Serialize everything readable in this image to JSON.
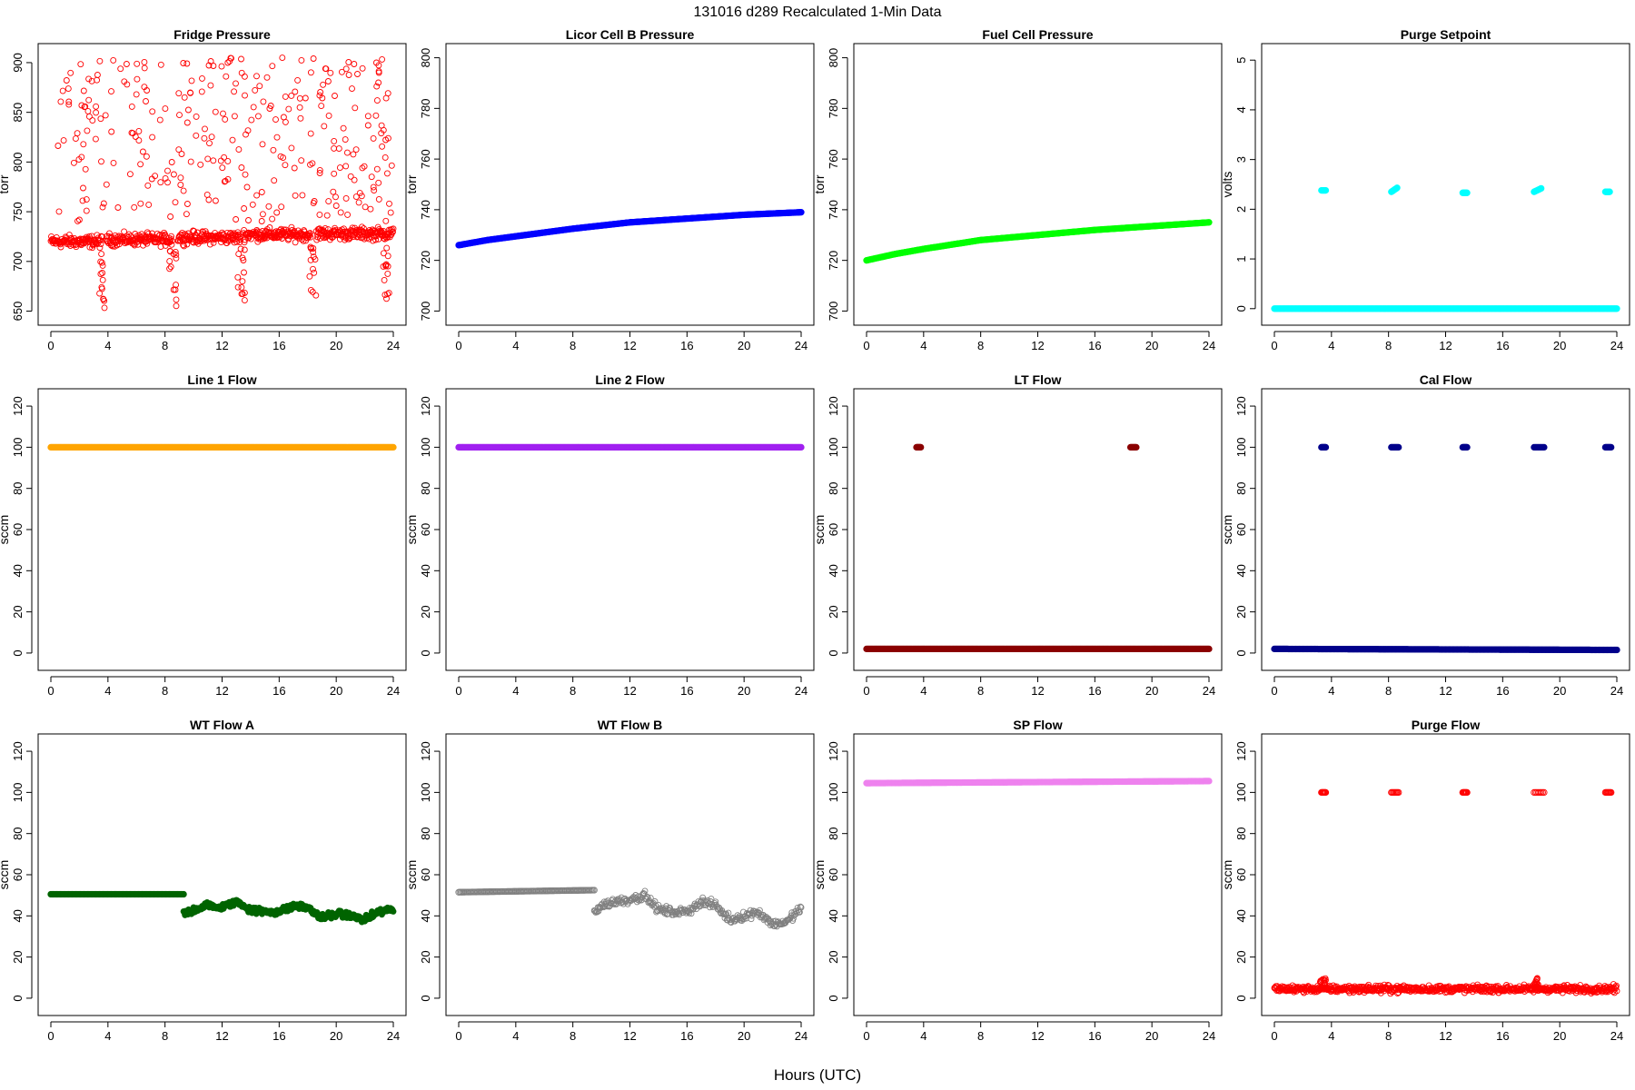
{
  "figure": {
    "title": "131016   d289   Recalculated 1-Min Data",
    "xlabel": "Hours (UTC)"
  },
  "chart_data": [
    {
      "title": "Fridge Pressure",
      "type": "scatter",
      "ylabel": "torr",
      "color": "#ff0000",
      "marker": "open-circle",
      "xlim": [
        0,
        24
      ],
      "ylim": [
        645,
        910
      ],
      "xticks": [
        0,
        4,
        8,
        12,
        16,
        20,
        24
      ],
      "yticks": [
        650,
        700,
        750,
        800,
        850,
        900
      ],
      "series": [
        {
          "kind": "band",
          "x": [
            0,
            3.6
          ],
          "y": [
            720,
            720
          ],
          "spread": 9
        },
        {
          "kind": "band",
          "x": [
            3.9,
            8.5
          ],
          "y": [
            722,
            722
          ],
          "spread": 9
        },
        {
          "kind": "band",
          "x": [
            8.9,
            13.3
          ],
          "y": [
            724,
            724
          ],
          "spread": 9
        },
        {
          "kind": "band",
          "x": [
            13.5,
            18.2
          ],
          "y": [
            727,
            727
          ],
          "spread": 9
        },
        {
          "kind": "band",
          "x": [
            18.6,
            24
          ],
          "y": [
            728,
            728
          ],
          "spread": 9
        },
        {
          "kind": "scatter",
          "count": 300,
          "x": [
            0.5,
            24
          ],
          "y": [
            740,
            905
          ]
        },
        {
          "kind": "dip",
          "x": [
            3.4,
            3.9
          ],
          "y": [
            650,
            715
          ]
        },
        {
          "kind": "dip",
          "x": [
            8.3,
            8.8
          ],
          "y": [
            655,
            715
          ]
        },
        {
          "kind": "dip",
          "x": [
            13.1,
            13.6
          ],
          "y": [
            660,
            715
          ]
        },
        {
          "kind": "dip",
          "x": [
            18.1,
            18.6
          ],
          "y": [
            660,
            715
          ]
        },
        {
          "kind": "dip",
          "x": [
            23.2,
            23.7
          ],
          "y": [
            660,
            715
          ]
        }
      ]
    },
    {
      "title": "Licor Cell B Pressure",
      "type": "line",
      "ylabel": "torr",
      "color": "#0000ff",
      "marker": "filled-circle",
      "xlim": [
        0,
        24
      ],
      "ylim": [
        698,
        802
      ],
      "xticks": [
        0,
        4,
        8,
        12,
        16,
        20,
        24
      ],
      "yticks": [
        700,
        720,
        740,
        760,
        780,
        800
      ],
      "series": [
        {
          "kind": "curve",
          "x": [
            0,
            2,
            4,
            8,
            12,
            16,
            20,
            24
          ],
          "y": [
            726,
            728,
            729.5,
            732.5,
            735,
            736.5,
            738,
            739
          ]
        }
      ]
    },
    {
      "title": "Fuel Cell Pressure",
      "type": "line",
      "ylabel": "torr",
      "color": "#00ff00",
      "marker": "filled-circle",
      "xlim": [
        0,
        24
      ],
      "ylim": [
        698,
        802
      ],
      "xticks": [
        0,
        4,
        8,
        12,
        16,
        20,
        24
      ],
      "yticks": [
        700,
        720,
        740,
        760,
        780,
        800
      ],
      "series": [
        {
          "kind": "curve",
          "x": [
            0,
            2,
            4,
            8,
            12,
            16,
            20,
            24
          ],
          "y": [
            720,
            722.5,
            724.5,
            728,
            730,
            732,
            733.5,
            735
          ]
        }
      ]
    },
    {
      "title": "Purge Setpoint",
      "type": "scatter",
      "ylabel": "volts",
      "color": "#00ffff",
      "marker": "filled-circle",
      "xlim": [
        0,
        24
      ],
      "ylim": [
        -0.15,
        5.15
      ],
      "xticks": [
        0,
        4,
        8,
        12,
        16,
        20,
        24
      ],
      "yticks": [
        0,
        1,
        2,
        3,
        4,
        5
      ],
      "series": [
        {
          "kind": "line",
          "x": [
            0,
            24
          ],
          "y": [
            0,
            0
          ]
        },
        {
          "kind": "cluster",
          "x": [
            3.3,
            3.6
          ],
          "y": [
            2.38,
            2.38
          ]
        },
        {
          "kind": "cluster",
          "x": [
            8.2,
            8.6
          ],
          "y": [
            2.35,
            2.43
          ]
        },
        {
          "kind": "cluster",
          "x": [
            13.2,
            13.5
          ],
          "y": [
            2.33,
            2.33
          ]
        },
        {
          "kind": "cluster",
          "x": [
            18.2,
            18.7
          ],
          "y": [
            2.35,
            2.42
          ]
        },
        {
          "kind": "cluster",
          "x": [
            23.2,
            23.5
          ],
          "y": [
            2.35,
            2.35
          ]
        }
      ]
    },
    {
      "title": "Line 1 Flow",
      "type": "line",
      "ylabel": "sccm",
      "color": "#ffa500",
      "marker": "filled-circle",
      "xlim": [
        0,
        24
      ],
      "ylim": [
        -4,
        124
      ],
      "xticks": [
        0,
        4,
        8,
        12,
        16,
        20,
        24
      ],
      "yticks": [
        0,
        20,
        40,
        60,
        80,
        100,
        120
      ],
      "series": [
        {
          "kind": "line",
          "x": [
            0,
            24
          ],
          "y": [
            100,
            100
          ]
        }
      ]
    },
    {
      "title": "Line 2 Flow",
      "type": "line",
      "ylabel": "sccm",
      "color": "#a020f0",
      "marker": "filled-circle",
      "xlim": [
        0,
        24
      ],
      "ylim": [
        -4,
        124
      ],
      "xticks": [
        0,
        4,
        8,
        12,
        16,
        20,
        24
      ],
      "yticks": [
        0,
        20,
        40,
        60,
        80,
        100,
        120
      ],
      "series": [
        {
          "kind": "line",
          "x": [
            0,
            24
          ],
          "y": [
            100,
            100
          ]
        }
      ]
    },
    {
      "title": "LT Flow",
      "type": "scatter",
      "ylabel": "sccm",
      "color": "#8b0000",
      "marker": "filled-circle",
      "xlim": [
        0,
        24
      ],
      "ylim": [
        -4,
        124
      ],
      "xticks": [
        0,
        4,
        8,
        12,
        16,
        20,
        24
      ],
      "yticks": [
        0,
        20,
        40,
        60,
        80,
        100,
        120
      ],
      "series": [
        {
          "kind": "line",
          "x": [
            0,
            24
          ],
          "y": [
            2,
            2
          ]
        },
        {
          "kind": "cluster",
          "x": [
            3.5,
            3.8
          ],
          "y": [
            100,
            100
          ]
        },
        {
          "kind": "cluster",
          "x": [
            18.5,
            18.9
          ],
          "y": [
            100,
            100
          ]
        }
      ]
    },
    {
      "title": "Cal Flow",
      "type": "scatter",
      "ylabel": "sccm",
      "color": "#00008b",
      "marker": "filled-circle",
      "xlim": [
        0,
        24
      ],
      "ylim": [
        -4,
        124
      ],
      "xticks": [
        0,
        4,
        8,
        12,
        16,
        20,
        24
      ],
      "yticks": [
        0,
        20,
        40,
        60,
        80,
        100,
        120
      ],
      "series": [
        {
          "kind": "line",
          "x": [
            0,
            24
          ],
          "y": [
            2,
            1.5
          ]
        },
        {
          "kind": "cluster",
          "x": [
            3.3,
            3.6
          ],
          "y": [
            100,
            100
          ]
        },
        {
          "kind": "cluster",
          "x": [
            8.2,
            8.7
          ],
          "y": [
            100,
            100
          ]
        },
        {
          "kind": "cluster",
          "x": [
            13.2,
            13.5
          ],
          "y": [
            100,
            100
          ]
        },
        {
          "kind": "cluster",
          "x": [
            18.2,
            18.9
          ],
          "y": [
            100,
            100
          ]
        },
        {
          "kind": "cluster",
          "x": [
            23.2,
            23.6
          ],
          "y": [
            100,
            100
          ]
        }
      ]
    },
    {
      "title": "WT Flow A",
      "type": "line",
      "ylabel": "sccm",
      "color": "#006400",
      "marker": "filled-circle",
      "xlim": [
        0,
        24
      ],
      "ylim": [
        -4,
        124
      ],
      "xticks": [
        0,
        4,
        8,
        12,
        16,
        20,
        24
      ],
      "yticks": [
        0,
        20,
        40,
        60,
        80,
        100,
        120
      ],
      "series": [
        {
          "kind": "line",
          "x": [
            0,
            9.3
          ],
          "y": [
            50.5,
            50.5
          ]
        },
        {
          "kind": "noisy",
          "x": [
            9.3,
            10,
            11,
            12,
            13,
            14,
            15,
            16,
            17,
            18,
            19,
            20,
            21,
            22,
            23,
            24
          ],
          "y": [
            41,
            43,
            45,
            44,
            47,
            43,
            42,
            42,
            45,
            44,
            39,
            41,
            40,
            38,
            42,
            43
          ],
          "spread": 2.5
        }
      ]
    },
    {
      "title": "WT Flow B",
      "type": "line",
      "ylabel": "sccm",
      "color": "#808080",
      "marker": "open-circle",
      "xlim": [
        0,
        24
      ],
      "ylim": [
        -4,
        124
      ],
      "xticks": [
        0,
        4,
        8,
        12,
        16,
        20,
        24
      ],
      "yticks": [
        0,
        20,
        40,
        60,
        80,
        100,
        120
      ],
      "series": [
        {
          "kind": "line",
          "x": [
            0,
            9.5
          ],
          "y": [
            51.5,
            52.5
          ]
        },
        {
          "kind": "noisy",
          "x": [
            9.5,
            10,
            11,
            12,
            13,
            14,
            15,
            16,
            17,
            18,
            19,
            20,
            21,
            22,
            23,
            24
          ],
          "y": [
            42,
            45,
            47,
            48,
            50,
            43,
            42,
            42,
            47,
            45,
            38,
            40,
            42,
            36,
            37,
            44
          ],
          "spread": 3
        }
      ]
    },
    {
      "title": "SP Flow",
      "type": "line",
      "ylabel": "sccm",
      "color": "#ee82ee",
      "marker": "filled-circle",
      "xlim": [
        0,
        24
      ],
      "ylim": [
        -4,
        124
      ],
      "xticks": [
        0,
        4,
        8,
        12,
        16,
        20,
        24
      ],
      "yticks": [
        0,
        20,
        40,
        60,
        80,
        100,
        120
      ],
      "series": [
        {
          "kind": "line",
          "x": [
            0,
            24
          ],
          "y": [
            104.5,
            105.5
          ]
        }
      ]
    },
    {
      "title": "Purge Flow",
      "type": "scatter",
      "ylabel": "sccm",
      "color": "#ff0000",
      "marker": "open-circle",
      "xlim": [
        0,
        24
      ],
      "ylim": [
        -4,
        124
      ],
      "xticks": [
        0,
        4,
        8,
        12,
        16,
        20,
        24
      ],
      "yticks": [
        0,
        20,
        40,
        60,
        80,
        100,
        120
      ],
      "series": [
        {
          "kind": "band",
          "x": [
            0,
            24
          ],
          "y": [
            4.5,
            4.5
          ],
          "spread": 2.5
        },
        {
          "kind": "dip",
          "x": [
            3.2,
            3.6
          ],
          "y": [
            6,
            10
          ]
        },
        {
          "kind": "dip",
          "x": [
            18.2,
            18.6
          ],
          "y": [
            6,
            10
          ]
        },
        {
          "kind": "cluster",
          "x": [
            3.3,
            3.6
          ],
          "y": [
            100,
            100
          ]
        },
        {
          "kind": "cluster",
          "x": [
            8.2,
            8.7
          ],
          "y": [
            100,
            100
          ]
        },
        {
          "kind": "cluster",
          "x": [
            13.2,
            13.5
          ],
          "y": [
            100,
            100
          ]
        },
        {
          "kind": "cluster",
          "x": [
            18.2,
            18.9
          ],
          "y": [
            100,
            100
          ]
        },
        {
          "kind": "cluster",
          "x": [
            23.2,
            23.6
          ],
          "y": [
            100,
            100
          ]
        }
      ]
    }
  ]
}
